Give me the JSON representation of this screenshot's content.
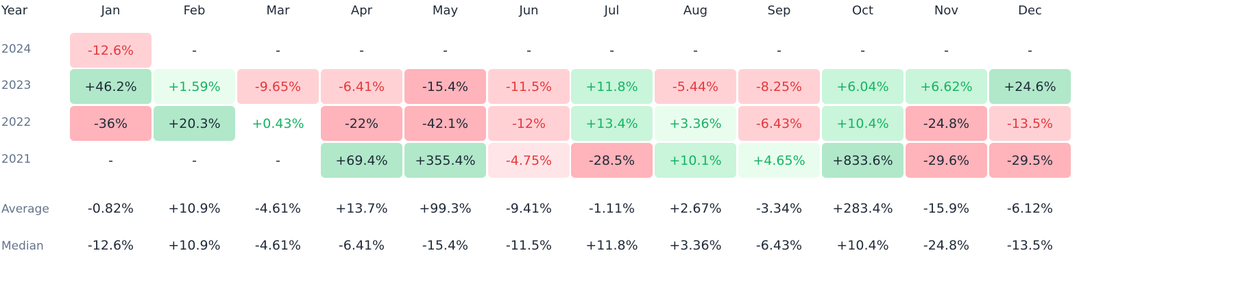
{
  "chart_data": {
    "type": "heatmap",
    "year_header": "Year",
    "columns": [
      "Jan",
      "Feb",
      "Mar",
      "Apr",
      "May",
      "Jun",
      "Jul",
      "Aug",
      "Sep",
      "Oct",
      "Nov",
      "Dec"
    ],
    "rows": [
      {
        "year": "2024",
        "values": [
          "-12.6%",
          "-",
          "-",
          "-",
          "-",
          "-",
          "-",
          "-",
          "-",
          "-",
          "-",
          "-"
        ]
      },
      {
        "year": "2023",
        "values": [
          "+46.2%",
          "+1.59%",
          "-9.65%",
          "-6.41%",
          "-15.4%",
          "-11.5%",
          "+11.8%",
          "-5.44%",
          "-8.25%",
          "+6.04%",
          "+6.62%",
          "+24.6%"
        ]
      },
      {
        "year": "2022",
        "values": [
          "-36%",
          "+20.3%",
          "+0.43%",
          "-22%",
          "-42.1%",
          "-12%",
          "+13.4%",
          "+3.36%",
          "-6.43%",
          "+10.4%",
          "-24.8%",
          "-13.5%"
        ]
      },
      {
        "year": "2021",
        "values": [
          "-",
          "-",
          "-",
          "+69.4%",
          "+355.4%",
          "-4.75%",
          "-28.5%",
          "+10.1%",
          "+4.65%",
          "+833.6%",
          "-29.6%",
          "-29.5%"
        ]
      }
    ],
    "summary": [
      {
        "label": "Average",
        "values": [
          "-0.82%",
          "+10.9%",
          "-4.61%",
          "+13.7%",
          "+99.3%",
          "-9.41%",
          "-1.11%",
          "+2.67%",
          "-3.34%",
          "+283.4%",
          "-15.9%",
          "-6.12%"
        ]
      },
      {
        "label": "Median",
        "values": [
          "-12.6%",
          "+10.9%",
          "-4.61%",
          "-6.41%",
          "-15.4%",
          "-11.5%",
          "+11.8%",
          "+3.36%",
          "-6.43%",
          "+10.4%",
          "-24.8%",
          "-13.5%"
        ]
      }
    ],
    "colors": {
      "pos_strong": "#b0e8c9",
      "pos_medium": "#c9f5da",
      "pos_light": "#e9fdee",
      "neg_strong": "#ffb3ba",
      "neg_medium": "#ffd1d5",
      "neg_light": "#ffe5e8",
      "text_dark": "#1f2937",
      "text_green": "#16b364",
      "text_red": "#e5383b",
      "label_gray": "#64748b"
    }
  }
}
